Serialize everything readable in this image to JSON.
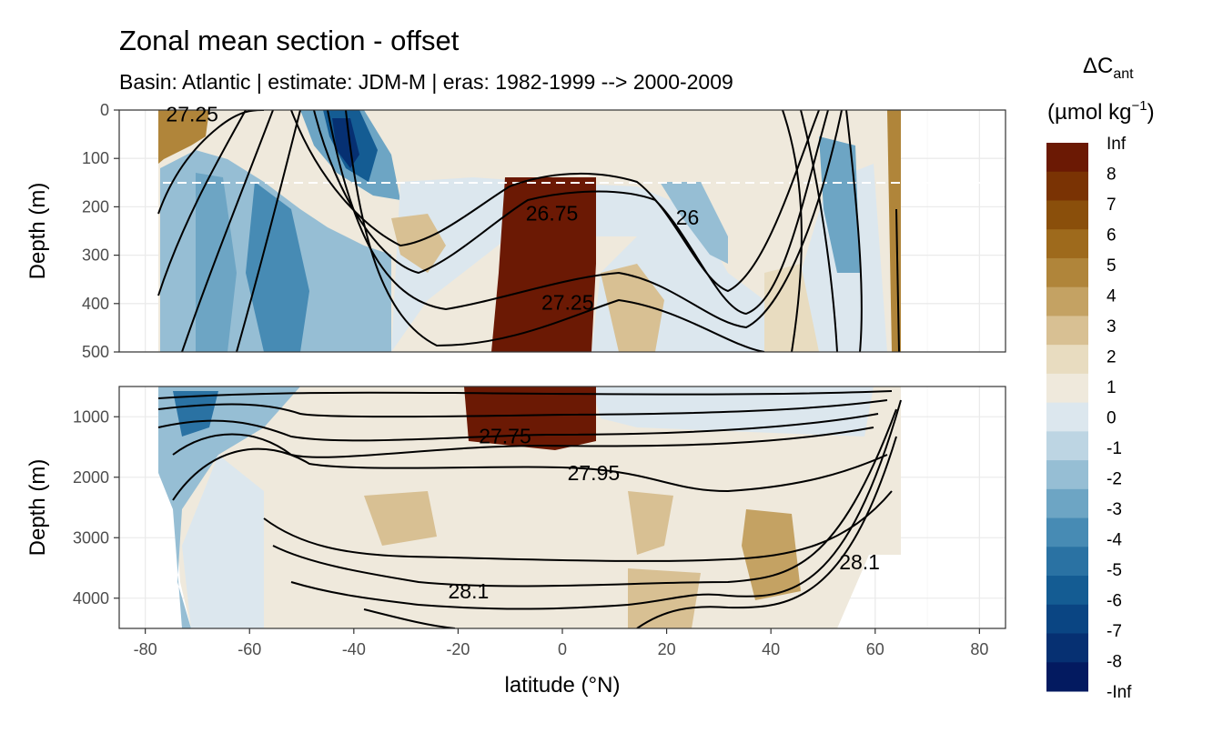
{
  "chart_data": {
    "type": "heatmap",
    "title": "Zonal mean section - offset",
    "subtitle": "Basin: Atlantic | estimate: JDM-M | eras: 1982-1999 --> 2000-2009",
    "xlabel": "latitude (°N)",
    "ylabel": "Depth (m)",
    "xlim": [
      -85,
      85
    ],
    "x_ticks": [
      -80,
      -60,
      -40,
      -20,
      0,
      20,
      40,
      60,
      80
    ],
    "x_tick_labels": [
      "-80",
      "-60",
      "-40",
      "-20",
      "0",
      "20",
      "40",
      "60",
      "80"
    ],
    "grid": true,
    "panels": [
      {
        "name": "upper",
        "ylim": [
          0,
          500
        ],
        "y_reversed": true,
        "y_ticks": [
          0,
          100,
          200,
          300,
          400,
          500
        ],
        "y_tick_labels": [
          "0",
          "100",
          "200",
          "300",
          "400",
          "500"
        ],
        "reference_line_depth": 150
      },
      {
        "name": "lower",
        "ylim": [
          500,
          4500
        ],
        "y_reversed": true,
        "y_ticks": [
          1000,
          2000,
          3000,
          4000
        ],
        "y_tick_labels": [
          "1000",
          "2000",
          "3000",
          "4000"
        ]
      }
    ],
    "legend": {
      "title_main": "ΔC",
      "title_sub": "ant",
      "unit_prefix": "(µmol kg",
      "unit_sup": "−1",
      "unit_suffix": ")",
      "position": "right",
      "breaks": [
        "Inf",
        "8",
        "7",
        "6",
        "5",
        "4",
        "3",
        "2",
        "1",
        "0",
        "-1",
        "-2",
        "-3",
        "-4",
        "-5",
        "-6",
        "-7",
        "-8",
        "-Inf"
      ],
      "colors": [
        "#6b1904",
        "#7a3304",
        "#8a4f0b",
        "#9e6a1c",
        "#b0853a",
        "#c4a263",
        "#d8c093",
        "#e8dcc0",
        "#efe9dc",
        "#dce7ee",
        "#bdd5e3",
        "#96bed4",
        "#6da5c4",
        "#478bb4",
        "#2a72a3",
        "#145c93",
        "#0a4583",
        "#063072",
        "#031a60"
      ]
    },
    "isopycnals": [
      {
        "label": "26",
        "panel": "upper",
        "lat": 24,
        "depth": 222
      },
      {
        "label": "26.75",
        "panel": "upper",
        "lat": -2,
        "depth": 213
      },
      {
        "label": "27.25",
        "panel": "upper",
        "lat": 1,
        "depth": 398
      },
      {
        "label": "27.25",
        "panel": "upper",
        "lat": -71,
        "depth": 8
      },
      {
        "label": "27.75",
        "panel": "lower",
        "lat": -11,
        "depth": 1320
      },
      {
        "label": "27.95",
        "panel": "lower",
        "lat": 6,
        "depth": 1930
      },
      {
        "label": "28.1",
        "panel": "lower",
        "lat": -18,
        "depth": 3880
      },
      {
        "label": "28.1",
        "panel": "lower",
        "lat": 57,
        "depth": 3400
      }
    ]
  }
}
